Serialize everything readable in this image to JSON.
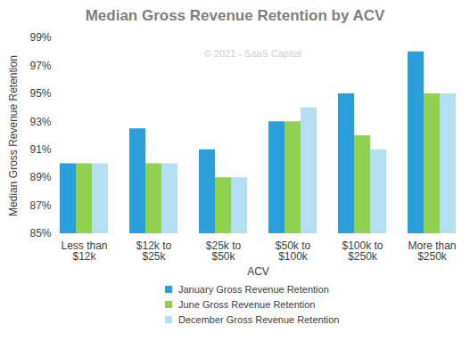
{
  "chart_data": {
    "type": "bar",
    "title": "Median Gross Revenue Retention by ACV",
    "x_label": "ACV",
    "y_label": "Median Gross Revenue Retention",
    "annotations": [
      "© 2021 - SaaS Capital"
    ],
    "categories": [
      "Less than $12k",
      "$12k to $25k",
      "$25k to $50k",
      "$50k to $100k",
      "$100k to $250k",
      "More than $250k"
    ],
    "series": [
      {
        "name": "January Gross Revenue Retention",
        "color": "#2a9fdc",
        "values": [
          90,
          92.5,
          91,
          93,
          95,
          98
        ]
      },
      {
        "name": "June Gross Revenue Retention",
        "color": "#92d050",
        "values": [
          90,
          90,
          89,
          93,
          92,
          95
        ]
      },
      {
        "name": "December Gross Revenue Retention",
        "color": "#b4dff3",
        "values": [
          90,
          90,
          89,
          94,
          91,
          95
        ]
      }
    ],
    "ylim": [
      85,
      99
    ],
    "yticks": [
      {
        "value": 85,
        "label": "85%"
      },
      {
        "value": 87,
        "label": "87%"
      },
      {
        "value": 89,
        "label": "89%"
      },
      {
        "value": 91,
        "label": "91%"
      },
      {
        "value": 93,
        "label": "93%"
      },
      {
        "value": 95,
        "label": "95%"
      },
      {
        "value": 97,
        "label": "97%"
      },
      {
        "value": 99,
        "label": "99%"
      }
    ],
    "grid": false,
    "legend": "bottom"
  }
}
